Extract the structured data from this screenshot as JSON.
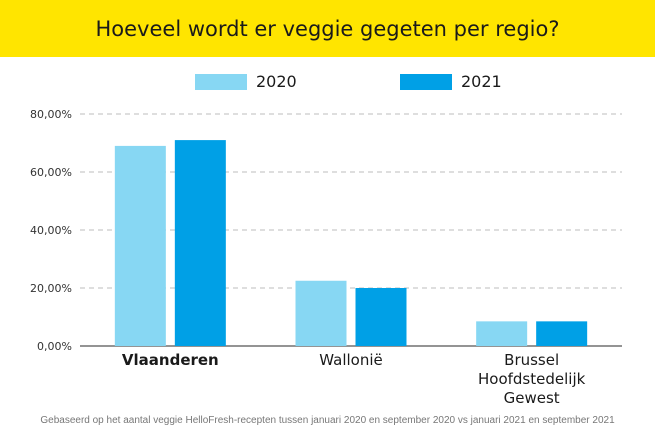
{
  "title": "Hoeveel wordt er veggie gegeten per regio?",
  "footnote": "Gebaseerd op het aantal veggie HelloFresh-recepten tussen januari 2020 en september 2020 vs januari 2021 en september 2021",
  "colors": {
    "banner": "#ffe500",
    "series_2020": "#87d7f3",
    "series_2021": "#00a0e6",
    "grid": "#bdbdbd",
    "axis_text": "#333333"
  },
  "legend": [
    {
      "label": "2020",
      "color": "#87d7f3"
    },
    {
      "label": "2021",
      "color": "#00a0e6"
    }
  ],
  "chart_data": {
    "type": "bar",
    "title": "Hoeveel wordt er veggie gegeten per regio?",
    "categories": [
      [
        "Vlaanderen"
      ],
      [
        "Wallonië"
      ],
      [
        "Brussel",
        "Hoofdstedelijk",
        "Gewest"
      ]
    ],
    "series": [
      {
        "name": "2020",
        "values": [
          69.0,
          22.5,
          8.5
        ]
      },
      {
        "name": "2021",
        "values": [
          71.0,
          20.0,
          8.5
        ]
      }
    ],
    "ylim": [
      0,
      80
    ],
    "yticks": [
      "0,00%",
      "20,00%",
      "40,00%",
      "60,00%",
      "80,00%"
    ],
    "ytick_values": [
      0,
      20,
      40,
      60,
      80
    ],
    "grid": true,
    "legend_position": "top-center"
  }
}
